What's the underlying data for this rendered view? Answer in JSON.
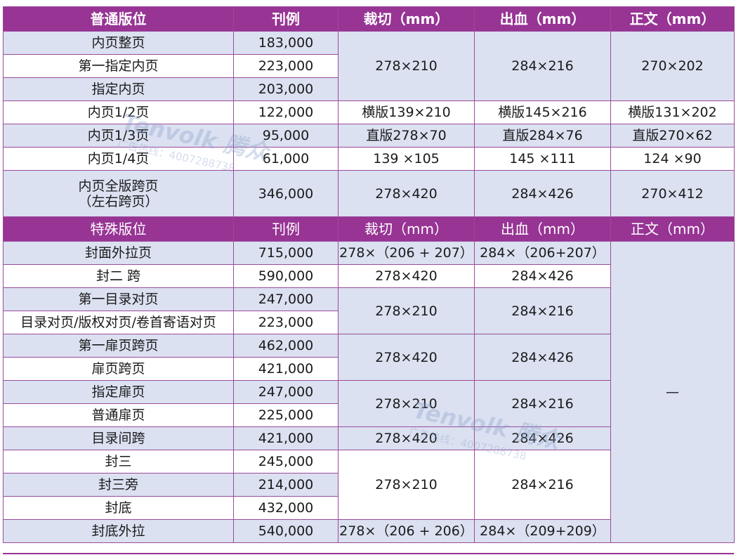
{
  "header1": {
    "position": "普通版位",
    "price": "刊例",
    "trim": "裁切（mm）",
    "bleed": "出血（mm）",
    "text": "正文（mm）"
  },
  "regular_rows": [
    {
      "name": "内页整页",
      "price": "183,000"
    },
    {
      "name": "第一指定内页",
      "price": "223,000"
    },
    {
      "name": "指定内页",
      "price": "203,000"
    },
    {
      "name": "内页1/2页",
      "price": "122,000",
      "trim": "横版139×210",
      "bleed": "横版145×216",
      "text": "横版131×202"
    },
    {
      "name": "内页1/3页",
      "price": "95,000",
      "trim": "直版278×70",
      "bleed": "直版284×76",
      "text": "直版270×62"
    },
    {
      "name": "内页1/4页",
      "price": "61,000",
      "trim": "139 ×105",
      "bleed": "145 ×111",
      "text": "124 ×90"
    },
    {
      "name_line1": "内页全版跨页",
      "name_line2": "（左右跨页）",
      "price": "346,000",
      "trim": "278×420",
      "bleed": "284×426",
      "text": "270×412"
    }
  ],
  "regular_full": {
    "trim": "278×210",
    "bleed": "284×216",
    "text": "270×202"
  },
  "header2": {
    "position": "特殊版位",
    "price": "刊例",
    "trim": "裁切（mm）",
    "bleed": "出血（mm）",
    "text": "正文（mm）"
  },
  "special_rows": [
    {
      "name": "封面外拉页",
      "price": "715,000",
      "trim": "278×（206 + 207）",
      "bleed": "284×（206+207）"
    },
    {
      "name": "封二 跨",
      "price": "590,000",
      "trim": "278×420",
      "bleed": "284×426"
    },
    {
      "name": "第一目录对页",
      "price": "247,000"
    },
    {
      "name": "目录对页/版权对页/卷首寄语对页",
      "price": "223,000"
    },
    {
      "name": "第一扉页跨页",
      "price": "462,000"
    },
    {
      "name": "扉页跨页",
      "price": "421,000"
    },
    {
      "name": "指定扉页",
      "price": "247,000"
    },
    {
      "name": "普通扉页",
      "price": "225,000"
    },
    {
      "name": "目录间跨",
      "price": "421,000",
      "trim": "278×420",
      "bleed": "284×426"
    },
    {
      "name": "封三",
      "price": "245,000"
    },
    {
      "name": "封三旁",
      "price": "214,000"
    },
    {
      "name": "封底",
      "price": "432,000"
    },
    {
      "name": "封底外拉",
      "price": "540,000",
      "trim": "278×（206 + 206）",
      "bleed": "284×（209+209）"
    }
  ],
  "special_groups": {
    "toc": {
      "trim": "278×210",
      "bleed": "284×216"
    },
    "title_spread": {
      "trim": "278×420",
      "bleed": "284×426"
    },
    "title_page": {
      "trim": "278×210",
      "bleed": "284×216"
    },
    "back": {
      "trim": "278×210",
      "bleed": "284×216"
    }
  },
  "special_text_value": "—",
  "watermark": {
    "brand": "Tenvolk 腾众",
    "hotline": "广告热线：4007288738"
  }
}
